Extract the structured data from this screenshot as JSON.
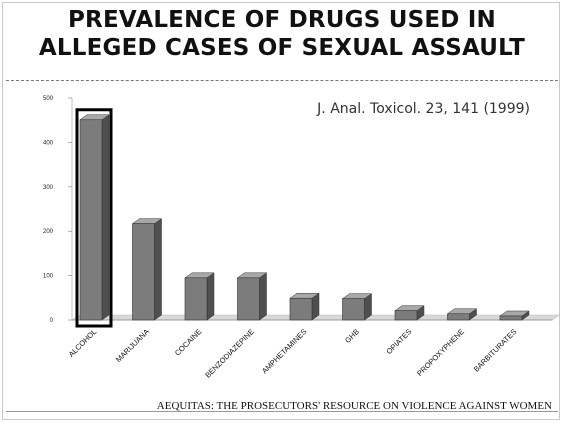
{
  "slide": {
    "title_line1": "PREVALENCE OF DRUGS USED IN",
    "title_line2": "ALLEGED CASES OF SEXUAL ASSAULT",
    "citation": "J. Anal. Toxicol. 23, 141 (1999)",
    "footer": "AEQUITAS: THE PROSECUTORS' RESOURCE ON VIOLENCE AGAINST WOMEN"
  },
  "chart_data": {
    "type": "bar",
    "categories": [
      "ALCOHOL",
      "MARIJUANA",
      "COCAINE",
      "BENZODIAZEPINE",
      "AMPHETAMINES",
      "GHB",
      "OPIATES",
      "PROPOXYPHENE",
      "BARBITURATES"
    ],
    "values": [
      451,
      217,
      95,
      95,
      49,
      48,
      21,
      14,
      9
    ],
    "ylim": [
      0,
      500
    ],
    "yticks": [
      "0",
      "100",
      "200",
      "300",
      "400",
      "500"
    ],
    "highlighted_category": "ALCOHOL",
    "bar_color": "#7c7c7c",
    "highlight_color": "#000000"
  }
}
